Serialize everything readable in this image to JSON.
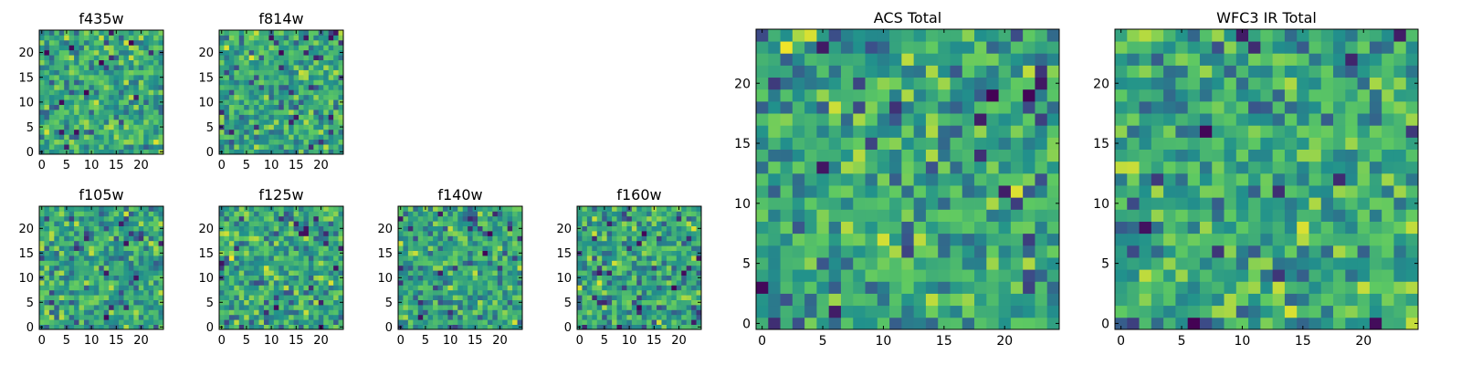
{
  "chart_data": [
    {
      "type": "heatmap",
      "title": "f435w",
      "grid_size": 25,
      "x_ticks": [
        0,
        5,
        10,
        15,
        20
      ],
      "y_ticks": [
        0,
        5,
        10,
        15,
        20
      ],
      "colormap": "viridis",
      "seed": 11
    },
    {
      "type": "heatmap",
      "title": "f814w",
      "grid_size": 25,
      "x_ticks": [
        0,
        5,
        10,
        15,
        20
      ],
      "y_ticks": [
        0,
        5,
        10,
        15,
        20
      ],
      "colormap": "viridis",
      "seed": 23
    },
    {
      "type": "heatmap",
      "title": "f105w",
      "grid_size": 25,
      "x_ticks": [
        0,
        5,
        10,
        15,
        20
      ],
      "y_ticks": [
        0,
        5,
        10,
        15,
        20
      ],
      "colormap": "viridis",
      "seed": 37
    },
    {
      "type": "heatmap",
      "title": "f125w",
      "grid_size": 25,
      "x_ticks": [
        0,
        5,
        10,
        15,
        20
      ],
      "y_ticks": [
        0,
        5,
        10,
        15,
        20
      ],
      "colormap": "viridis",
      "seed": 41
    },
    {
      "type": "heatmap",
      "title": "f140w",
      "grid_size": 25,
      "x_ticks": [
        0,
        5,
        10,
        15,
        20
      ],
      "y_ticks": [
        0,
        5,
        10,
        15,
        20
      ],
      "colormap": "viridis",
      "seed": 53
    },
    {
      "type": "heatmap",
      "title": "f160w",
      "grid_size": 25,
      "x_ticks": [
        0,
        5,
        10,
        15,
        20
      ],
      "y_ticks": [
        0,
        5,
        10,
        15,
        20
      ],
      "colormap": "viridis",
      "seed": 67
    },
    {
      "type": "heatmap",
      "title": "ACS Total",
      "grid_size": 25,
      "x_ticks": [
        0,
        5,
        10,
        15,
        20
      ],
      "y_ticks": [
        0,
        5,
        10,
        15,
        20
      ],
      "colormap": "viridis",
      "seed": 79
    },
    {
      "type": "heatmap",
      "title": "WFC3 IR Total",
      "grid_size": 25,
      "x_ticks": [
        0,
        5,
        10,
        15,
        20
      ],
      "y_ticks": [
        0,
        5,
        10,
        15,
        20
      ],
      "colormap": "viridis",
      "seed": 97
    }
  ],
  "colors": {
    "viridis_stops": [
      "#440154",
      "#3b528b",
      "#21918c",
      "#5ec962",
      "#fde725"
    ],
    "axis": "#000000",
    "background": "#ffffff"
  }
}
